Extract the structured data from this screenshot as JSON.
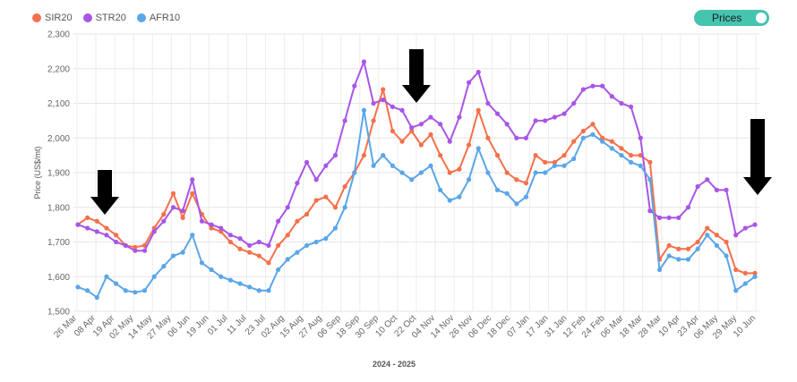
{
  "toggle": {
    "label": "Prices",
    "state": "on"
  },
  "colors": {
    "SIR20": "#f5704a",
    "STR20": "#a855e8",
    "AFR10": "#5aa6e8",
    "toggle": "#45c4b0",
    "arrow": "#000000"
  },
  "chart_data": {
    "type": "line",
    "xlabel": "2024 - 2025",
    "ylabel": "Price (US$/mt)",
    "ylim": [
      1500,
      2300
    ],
    "yticks": [
      "1,500",
      "1,600",
      "1,700",
      "1,800",
      "1,900",
      "2,000",
      "2,100",
      "2,200",
      "2,300"
    ],
    "xticks": [
      "26 Mar",
      "08 Apr",
      "19 Apr",
      "02 May",
      "14 May",
      "27 May",
      "06 Jun",
      "19 Jun",
      "01 Jul",
      "11 Jul",
      "23 Jul",
      "02 Aug",
      "15 Aug",
      "27 Aug",
      "06 Sep",
      "18 Sep",
      "30 Sep",
      "10 Oct",
      "22 Oct",
      "04 Nov",
      "14 Nov",
      "26 Nov",
      "06 Dec",
      "18 Dec",
      "07 Jan",
      "17 Jan",
      "31 Jan",
      "12 Feb",
      "24 Feb",
      "06 Mar",
      "18 Mar",
      "28 Mar",
      "10 Apr",
      "23 Apr",
      "06 May",
      "29 May",
      "10 Jun"
    ],
    "grid": true,
    "legend_position": "top-left",
    "series": [
      {
        "name": "SIR20",
        "values": [
          1750,
          1770,
          1760,
          1740,
          1720,
          1690,
          1685,
          1690,
          1740,
          1780,
          1840,
          1770,
          1840,
          1780,
          1740,
          1730,
          1700,
          1680,
          1670,
          1660,
          1640,
          1690,
          1720,
          1760,
          1780,
          1820,
          1830,
          1800,
          1860,
          1900,
          1950,
          2050,
          2140,
          2020,
          1990,
          2020,
          1980,
          2010,
          1950,
          1900,
          1910,
          1980,
          2080,
          2000,
          1950,
          1900,
          1880,
          1870,
          1950,
          1930,
          1930,
          1950,
          1990,
          2020,
          2040,
          2000,
          1990,
          1970,
          1950,
          1950,
          1930,
          1650,
          1690,
          1680,
          1680,
          1700,
          1740,
          1720,
          1700,
          1620,
          1610,
          1610
        ]
      },
      {
        "name": "STR20",
        "values": [
          1750,
          1740,
          1730,
          1720,
          1700,
          1690,
          1675,
          1675,
          1730,
          1760,
          1800,
          1790,
          1880,
          1760,
          1750,
          1740,
          1720,
          1710,
          1690,
          1700,
          1690,
          1760,
          1800,
          1870,
          1930,
          1880,
          1920,
          1950,
          2050,
          2150,
          2220,
          2100,
          2110,
          2090,
          2080,
          2030,
          2040,
          2060,
          2040,
          1990,
          2060,
          2160,
          2190,
          2100,
          2070,
          2040,
          2000,
          2000,
          2050,
          2050,
          2060,
          2070,
          2100,
          2140,
          2150,
          2150,
          2120,
          2100,
          2090,
          2000,
          1790,
          1770,
          1770,
          1770,
          1800,
          1860,
          1880,
          1850,
          1850,
          1720,
          1740,
          1750
        ]
      },
      {
        "name": "AFR10",
        "values": [
          1570,
          1560,
          1540,
          1600,
          1580,
          1560,
          1555,
          1560,
          1600,
          1630,
          1660,
          1670,
          1720,
          1640,
          1620,
          1600,
          1590,
          1580,
          1570,
          1560,
          1560,
          1620,
          1650,
          1670,
          1690,
          1700,
          1710,
          1740,
          1800,
          1900,
          2080,
          1920,
          1950,
          1920,
          1900,
          1880,
          1900,
          1920,
          1850,
          1820,
          1830,
          1880,
          1970,
          1900,
          1850,
          1840,
          1810,
          1830,
          1900,
          1900,
          1920,
          1920,
          1940,
          2000,
          2010,
          1990,
          1970,
          1950,
          1930,
          1920,
          1880,
          1620,
          1660,
          1650,
          1650,
          1680,
          1720,
          1690,
          1660,
          1560,
          1580,
          1600
        ]
      }
    ],
    "arrows": [
      {
        "x_label": "08 Apr",
        "direction": "down"
      },
      {
        "x_label": "22 Oct",
        "direction": "down"
      },
      {
        "x_label": "10 Jun",
        "direction": "down"
      }
    ]
  }
}
